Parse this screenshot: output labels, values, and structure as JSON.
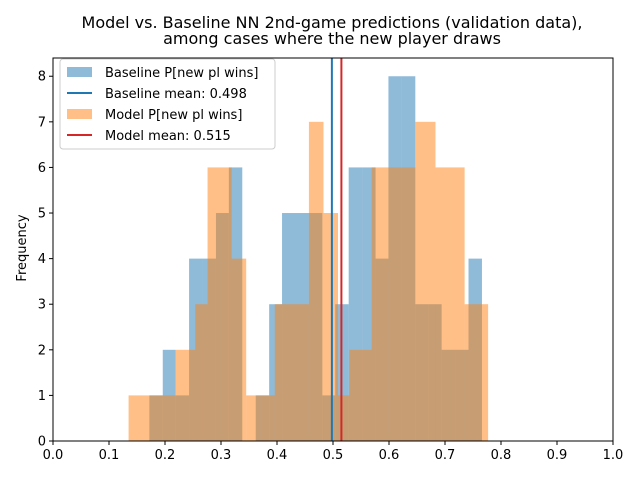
{
  "chart_data": {
    "type": "histogram",
    "title": [
      "Model vs. Baseline NN 2nd-game predictions (validation data),",
      "among cases where the new player draws"
    ],
    "xlabel": "",
    "ylabel": "Frequency",
    "xlim": [
      0.0,
      1.0
    ],
    "ylim": [
      0,
      8.4
    ],
    "xticks": [
      "0.0",
      "0.1",
      "0.2",
      "0.3",
      "0.4",
      "0.5",
      "0.6",
      "0.7",
      "0.8",
      "0.9",
      "1.0"
    ],
    "yticks": [
      "0",
      "1",
      "2",
      "3",
      "4",
      "5",
      "6",
      "7",
      "8"
    ],
    "grid": false,
    "legend_position": "upper-left",
    "series": [
      {
        "name": "Baseline P[new pl wins]",
        "color": "#1f77b4",
        "alpha": 0.5,
        "bins": [
          {
            "x0": 0.172,
            "x1": 0.196,
            "count": 1
          },
          {
            "x0": 0.196,
            "x1": 0.219,
            "count": 2
          },
          {
            "x0": 0.219,
            "x1": 0.243,
            "count": 1
          },
          {
            "x0": 0.243,
            "x1": 0.267,
            "count": 4
          },
          {
            "x0": 0.267,
            "x1": 0.291,
            "count": 4
          },
          {
            "x0": 0.291,
            "x1": 0.314,
            "count": 5
          },
          {
            "x0": 0.314,
            "x1": 0.338,
            "count": 6
          },
          {
            "x0": 0.338,
            "x1": 0.362,
            "count": 0
          },
          {
            "x0": 0.362,
            "x1": 0.386,
            "count": 1
          },
          {
            "x0": 0.386,
            "x1": 0.409,
            "count": 3
          },
          {
            "x0": 0.409,
            "x1": 0.433,
            "count": 5
          },
          {
            "x0": 0.433,
            "x1": 0.457,
            "count": 5
          },
          {
            "x0": 0.457,
            "x1": 0.481,
            "count": 5
          },
          {
            "x0": 0.481,
            "x1": 0.504,
            "count": 1
          },
          {
            "x0": 0.504,
            "x1": 0.528,
            "count": 3
          },
          {
            "x0": 0.528,
            "x1": 0.552,
            "count": 6
          },
          {
            "x0": 0.552,
            "x1": 0.576,
            "count": 6
          },
          {
            "x0": 0.576,
            "x1": 0.599,
            "count": 4
          },
          {
            "x0": 0.599,
            "x1": 0.623,
            "count": 8
          },
          {
            "x0": 0.623,
            "x1": 0.647,
            "count": 8
          },
          {
            "x0": 0.647,
            "x1": 0.671,
            "count": 3
          },
          {
            "x0": 0.671,
            "x1": 0.694,
            "count": 3
          },
          {
            "x0": 0.694,
            "x1": 0.718,
            "count": 2
          },
          {
            "x0": 0.718,
            "x1": 0.742,
            "count": 2
          },
          {
            "x0": 0.742,
            "x1": 0.766,
            "count": 4
          }
        ],
        "mean": 0.498
      },
      {
        "name": "Model P[new pl wins]",
        "color": "#ff7f0e",
        "alpha": 0.5,
        "bins": [
          {
            "x0": 0.135,
            "x1": 0.172,
            "count": 1
          },
          {
            "x0": 0.172,
            "x1": 0.219,
            "count": 1
          },
          {
            "x0": 0.219,
            "x1": 0.254,
            "count": 2
          },
          {
            "x0": 0.254,
            "x1": 0.276,
            "count": 3
          },
          {
            "x0": 0.276,
            "x1": 0.299,
            "count": 6
          },
          {
            "x0": 0.299,
            "x1": 0.319,
            "count": 6
          },
          {
            "x0": 0.319,
            "x1": 0.345,
            "count": 4
          },
          {
            "x0": 0.345,
            "x1": 0.371,
            "count": 1
          },
          {
            "x0": 0.371,
            "x1": 0.396,
            "count": 1
          },
          {
            "x0": 0.396,
            "x1": 0.423,
            "count": 3
          },
          {
            "x0": 0.423,
            "x1": 0.457,
            "count": 3
          },
          {
            "x0": 0.457,
            "x1": 0.483,
            "count": 7
          },
          {
            "x0": 0.483,
            "x1": 0.509,
            "count": 5
          },
          {
            "x0": 0.509,
            "x1": 0.529,
            "count": 1
          },
          {
            "x0": 0.529,
            "x1": 0.569,
            "count": 2
          },
          {
            "x0": 0.569,
            "x1": 0.599,
            "count": 6
          },
          {
            "x0": 0.599,
            "x1": 0.647,
            "count": 6
          },
          {
            "x0": 0.647,
            "x1": 0.683,
            "count": 7
          },
          {
            "x0": 0.683,
            "x1": 0.709,
            "count": 6
          },
          {
            "x0": 0.709,
            "x1": 0.735,
            "count": 6
          },
          {
            "x0": 0.735,
            "x1": 0.777,
            "count": 3
          }
        ],
        "mean": 0.515
      }
    ],
    "mean_lines": [
      {
        "name": "Baseline mean: 0.498",
        "x": 0.498,
        "color": "#1f77b4"
      },
      {
        "name": "Model mean: 0.515",
        "x": 0.515,
        "color": "#d62728"
      }
    ]
  }
}
